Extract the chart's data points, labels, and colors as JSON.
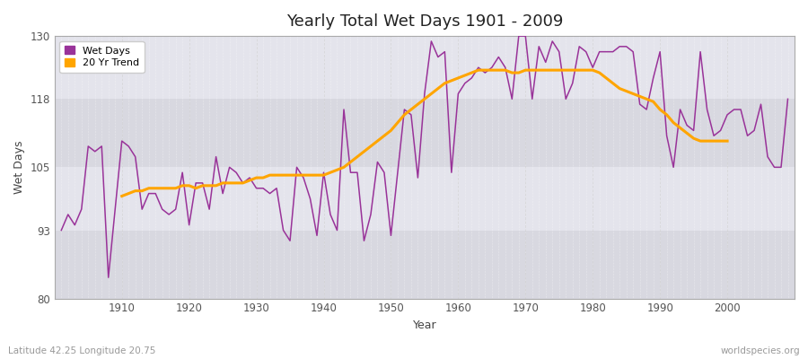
{
  "title": "Yearly Total Wet Days 1901 - 2009",
  "xlabel": "Year",
  "ylabel": "Wet Days",
  "lat_lon_label": "Latitude 42.25 Longitude 20.75",
  "source_label": "worldspecies.org",
  "ylim": [
    80,
    130
  ],
  "yticks": [
    80,
    93,
    105,
    118,
    130
  ],
  "line_color": "#993399",
  "trend_color": "#FFA500",
  "background_color": "#E0E0E8",
  "fig_background": "#FFFFFF",
  "years": [
    1901,
    1902,
    1903,
    1904,
    1905,
    1906,
    1907,
    1908,
    1909,
    1910,
    1911,
    1912,
    1913,
    1914,
    1915,
    1916,
    1917,
    1918,
    1919,
    1920,
    1921,
    1922,
    1923,
    1924,
    1925,
    1926,
    1927,
    1928,
    1929,
    1930,
    1931,
    1932,
    1933,
    1934,
    1935,
    1936,
    1937,
    1938,
    1939,
    1940,
    1941,
    1942,
    1943,
    1944,
    1945,
    1946,
    1947,
    1948,
    1949,
    1950,
    1951,
    1952,
    1953,
    1954,
    1955,
    1956,
    1957,
    1958,
    1959,
    1960,
    1961,
    1962,
    1963,
    1964,
    1965,
    1966,
    1967,
    1968,
    1969,
    1970,
    1971,
    1972,
    1973,
    1974,
    1975,
    1976,
    1977,
    1978,
    1979,
    1980,
    1981,
    1982,
    1983,
    1984,
    1985,
    1986,
    1987,
    1988,
    1989,
    1990,
    1991,
    1992,
    1993,
    1994,
    1995,
    1996,
    1997,
    1998,
    1999,
    2000,
    2001,
    2002,
    2003,
    2004,
    2005,
    2006,
    2007,
    2008,
    2009
  ],
  "wet_days": [
    93,
    96,
    94,
    97,
    109,
    108,
    109,
    84,
    97,
    110,
    109,
    107,
    97,
    100,
    100,
    97,
    96,
    97,
    104,
    94,
    102,
    102,
    97,
    107,
    100,
    105,
    104,
    102,
    103,
    101,
    101,
    100,
    101,
    93,
    91,
    105,
    103,
    99,
    92,
    104,
    96,
    93,
    116,
    104,
    104,
    91,
    96,
    106,
    104,
    92,
    104,
    116,
    115,
    103,
    119,
    129,
    126,
    127,
    104,
    119,
    121,
    122,
    124,
    123,
    124,
    126,
    124,
    118,
    130,
    130,
    118,
    128,
    125,
    129,
    127,
    118,
    121,
    128,
    127,
    124,
    127,
    127,
    127,
    128,
    128,
    127,
    117,
    116,
    122,
    127,
    111,
    105,
    116,
    113,
    112,
    127,
    116,
    111,
    112,
    115,
    116,
    116,
    111,
    112,
    117,
    107,
    105,
    105,
    118
  ],
  "trend": [
    null,
    null,
    null,
    null,
    null,
    null,
    null,
    null,
    null,
    99.5,
    100.0,
    100.5,
    100.5,
    101.0,
    101.0,
    101.0,
    101.0,
    101.0,
    101.5,
    101.5,
    101.0,
    101.5,
    101.5,
    101.5,
    102.0,
    102.0,
    102.0,
    102.0,
    102.5,
    103.0,
    103.0,
    103.5,
    103.5,
    103.5,
    103.5,
    103.5,
    103.5,
    103.5,
    103.5,
    103.5,
    104.0,
    104.5,
    105.0,
    106.0,
    107.0,
    108.0,
    109.0,
    110.0,
    111.0,
    112.0,
    113.5,
    115.0,
    116.0,
    117.0,
    118.0,
    119.0,
    120.0,
    121.0,
    121.5,
    122.0,
    122.5,
    123.0,
    123.5,
    123.5,
    123.5,
    123.5,
    123.5,
    123.0,
    123.0,
    123.5,
    123.5,
    123.5,
    123.5,
    123.5,
    123.5,
    123.5,
    123.5,
    123.5,
    123.5,
    123.5,
    123.0,
    122.0,
    121.0,
    120.0,
    119.5,
    119.0,
    118.5,
    118.0,
    117.5,
    116.0,
    115.0,
    113.5,
    112.5,
    111.5,
    110.5,
    110.0,
    110.0,
    110.0,
    110.0,
    110.0,
    null,
    null,
    null,
    null,
    null,
    null,
    null,
    null,
    null
  ],
  "band_colors": [
    "#D8D8E0",
    "#E4E4EC"
  ]
}
